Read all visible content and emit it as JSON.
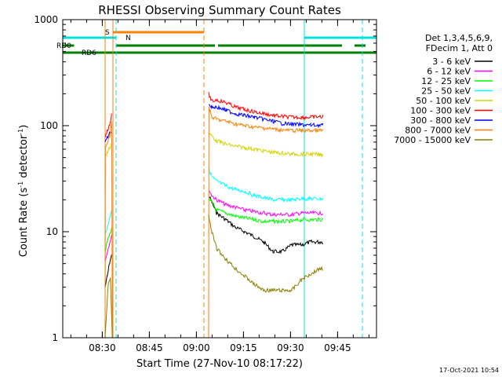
{
  "chart_data": {
    "type": "line",
    "title": "RHESSI Observing Summary Count Rates",
    "xlabel": "Start Time (27-Nov-10 08:17:22)",
    "ylabel_main": "Count Rate (s",
    "ylabel_sup": "-1",
    "ylabel_tail": " detector",
    "ylabel_end": ")",
    "footer": "17-Oct-2021 10:54",
    "yscale": "log",
    "ylim": [
      1,
      1000
    ],
    "xlim_minutes": [
      0,
      100
    ],
    "y_ticks": [
      {
        "value": 1,
        "label": "1"
      },
      {
        "value": 10,
        "label": "10"
      },
      {
        "value": 100,
        "label": "100"
      },
      {
        "value": 1000,
        "label": "1000"
      }
    ],
    "x_ticks": [
      {
        "minute": 12.6,
        "label": "08:30"
      },
      {
        "minute": 27.6,
        "label": "08:45"
      },
      {
        "minute": 42.6,
        "label": "09:00"
      },
      {
        "minute": 57.6,
        "label": "09:15"
      },
      {
        "minute": 72.6,
        "label": "09:30"
      },
      {
        "minute": 87.6,
        "label": "09:45"
      }
    ],
    "legend": {
      "header": [
        "Det 1,3,4,5,6,9,",
        "FDecim 1, Att 0"
      ],
      "placement": "right"
    },
    "series": [
      {
        "name": "3 - 6 keV",
        "color": "#000000",
        "segments": [
          [
            [
              13.5,
              3
            ],
            [
              14.2,
              3.8
            ],
            [
              15,
              5.2
            ],
            [
              15.6,
              6
            ]
          ],
          [
            [
              46.5,
              22
            ],
            [
              47.5,
              19
            ],
            [
              49,
              15
            ],
            [
              52,
              13
            ],
            [
              55,
              11
            ],
            [
              58,
              10
            ],
            [
              61,
              9
            ],
            [
              64,
              8
            ],
            [
              67,
              6.5
            ],
            [
              70,
              6.5
            ],
            [
              73,
              7.5
            ],
            [
              76,
              7.5
            ],
            [
              79,
              8
            ],
            [
              82,
              8
            ],
            [
              83,
              8
            ]
          ]
        ]
      },
      {
        "name": "6 - 12 keV",
        "color": "#ff00ff",
        "segments": [
          [
            [
              13.5,
              5.2
            ],
            [
              14.2,
              6.5
            ],
            [
              15,
              8
            ],
            [
              15.6,
              9
            ]
          ],
          [
            [
              46.5,
              25
            ],
            [
              47.5,
              22
            ],
            [
              49,
              20
            ],
            [
              52,
              18
            ],
            [
              55,
              17
            ],
            [
              58,
              16
            ],
            [
              61,
              15.5
            ],
            [
              64,
              15
            ],
            [
              67,
              14.5
            ],
            [
              70,
              14.5
            ],
            [
              73,
              14.5
            ],
            [
              76,
              15
            ],
            [
              79,
              15
            ],
            [
              82,
              15
            ],
            [
              83,
              15
            ]
          ]
        ]
      },
      {
        "name": "12 - 25 keV",
        "color": "#00ff00",
        "segments": [
          [
            [
              13.5,
              6.5
            ],
            [
              14.2,
              8
            ],
            [
              15,
              9.5
            ],
            [
              15.6,
              11
            ]
          ],
          [
            [
              46.5,
              21
            ],
            [
              47.5,
              19
            ],
            [
              49,
              16
            ],
            [
              52,
              15
            ],
            [
              55,
              14
            ],
            [
              58,
              13.5
            ],
            [
              61,
              13
            ],
            [
              64,
              12.5
            ],
            [
              67,
              12.5
            ],
            [
              70,
              12.5
            ],
            [
              73,
              12.5
            ],
            [
              76,
              13
            ],
            [
              79,
              13
            ],
            [
              82,
              13
            ],
            [
              83,
              13
            ]
          ]
        ]
      },
      {
        "name": "25 - 50 keV",
        "color": "#00ffff",
        "segments": [
          [
            [
              13.5,
              9.5
            ],
            [
              14.2,
              11
            ],
            [
              15,
              14
            ],
            [
              15.6,
              16
            ]
          ],
          [
            [
              46.5,
              40
            ],
            [
              47.5,
              33
            ],
            [
              49,
              30
            ],
            [
              52,
              27
            ],
            [
              55,
              25
            ],
            [
              58,
              24
            ],
            [
              61,
              22
            ],
            [
              64,
              21
            ],
            [
              67,
              20
            ],
            [
              70,
              20
            ],
            [
              73,
              20
            ],
            [
              76,
              20.5
            ],
            [
              79,
              20.5
            ],
            [
              82,
              20.5
            ],
            [
              83,
              20.5
            ]
          ]
        ]
      },
      {
        "name": "50 - 100 keV",
        "color": "#d4d400",
        "segments": [
          [
            [
              13.5,
              50
            ],
            [
              14.2,
              56
            ],
            [
              15,
              62
            ],
            [
              15.6,
              70
            ]
          ],
          [
            [
              46.5,
              85
            ],
            [
              47.5,
              80
            ],
            [
              49,
              72
            ],
            [
              52,
              67
            ],
            [
              55,
              64
            ],
            [
              58,
              62
            ],
            [
              61,
              60
            ],
            [
              64,
              58
            ],
            [
              67,
              56
            ],
            [
              70,
              55
            ],
            [
              73,
              54
            ],
            [
              76,
              54
            ],
            [
              79,
              54
            ],
            [
              82,
              53
            ],
            [
              83,
              53
            ]
          ]
        ]
      },
      {
        "name": "100 - 300 keV",
        "color": "#ff0000",
        "segments": [
          [
            [
              13.5,
              80
            ],
            [
              14.2,
              90
            ],
            [
              15,
              105
            ],
            [
              15.6,
              125
            ]
          ],
          [
            [
              46.5,
              200
            ],
            [
              47.5,
              170
            ],
            [
              49,
              175
            ],
            [
              52,
              165
            ],
            [
              55,
              150
            ],
            [
              58,
              142
            ],
            [
              61,
              135
            ],
            [
              64,
              130
            ],
            [
              67,
              125
            ],
            [
              70,
              122
            ],
            [
              73,
              120
            ],
            [
              76,
              120
            ],
            [
              79,
              120
            ],
            [
              82,
              122
            ],
            [
              83,
              122
            ]
          ]
        ]
      },
      {
        "name": "300 - 800 keV",
        "color": "#0000ff",
        "segments": [
          [
            [
              13.5,
              70
            ],
            [
              14.2,
              78
            ],
            [
              15,
              85
            ],
            [
              15.6,
              90
            ]
          ],
          [
            [
              46.5,
              160
            ],
            [
              47.5,
              150
            ],
            [
              49,
              150
            ],
            [
              52,
              140
            ],
            [
              55,
              130
            ],
            [
              58,
              125
            ],
            [
              61,
              120
            ],
            [
              64,
              115
            ],
            [
              67,
              110
            ],
            [
              70,
              105
            ],
            [
              73,
              103
            ],
            [
              76,
              102
            ],
            [
              79,
              101
            ],
            [
              82,
              101
            ],
            [
              83,
              101
            ]
          ]
        ]
      },
      {
        "name": "800 - 7000 keV",
        "color": "#ff8000",
        "segments": [
          [
            [
              13.5,
              1
            ],
            [
              13.6,
              60
            ],
            [
              14.2,
              70
            ],
            [
              15,
              80
            ],
            [
              15.6,
              110
            ],
            [
              15.8,
              1
            ]
          ],
          [
            [
              46.5,
              1
            ],
            [
              46.6,
              150
            ],
            [
              47.5,
              120
            ],
            [
              49,
              115
            ],
            [
              52,
              110
            ],
            [
              55,
              104
            ],
            [
              58,
              100
            ],
            [
              61,
              97
            ],
            [
              64,
              95
            ],
            [
              67,
              93
            ],
            [
              70,
              91
            ],
            [
              73,
              90
            ],
            [
              76,
              90
            ],
            [
              79,
              90
            ],
            [
              82,
              90
            ],
            [
              83,
              90
            ]
          ]
        ]
      },
      {
        "name": "7000 - 15000 keV",
        "color": "#8b8000",
        "segments": [
          [
            [
              13.5,
              1
            ],
            [
              14.5,
              3.2
            ],
            [
              15.2,
              3.6
            ],
            [
              15.8,
              1
            ]
          ],
          [
            [
              46.5,
              14
            ],
            [
              47.5,
              10
            ],
            [
              49,
              7
            ],
            [
              52,
              5.5
            ],
            [
              55,
              4.5
            ],
            [
              58,
              3.8
            ],
            [
              61,
              3.2
            ],
            [
              64,
              2.8
            ],
            [
              67,
              2.8
            ],
            [
              70,
              2.8
            ],
            [
              73,
              2.8
            ],
            [
              76,
              3.5
            ],
            [
              79,
              4
            ],
            [
              82,
              4.5
            ],
            [
              83,
              4.5
            ]
          ]
        ]
      }
    ],
    "flag_lines": [
      {
        "label": "RD0",
        "color": "#008000",
        "y_index": 0,
        "segments": [
          [
            0,
            3.6
          ],
          [
            17,
            48.5
          ],
          [
            49.5,
            89
          ],
          [
            93,
            96.5
          ]
        ]
      },
      {
        "label": "RD6",
        "color": "#008000",
        "y_index": 1,
        "segments": [
          [
            0,
            100
          ]
        ]
      },
      {
        "label": "N",
        "color": "#00e0e0",
        "y_index": -1,
        "segments": [
          [
            0,
            17
          ],
          [
            77,
            100
          ]
        ]
      },
      {
        "label": "S",
        "color": "#ff8000",
        "y_index": -2,
        "segments": [
          [
            16,
            45
          ]
        ]
      }
    ],
    "vlines": [
      {
        "minute": 0,
        "color": "#00e0e0",
        "style": "solid"
      },
      {
        "minute": 13.5,
        "color": "#ff8000",
        "style": "solid"
      },
      {
        "minute": 16,
        "color": "#ff8000",
        "style": "solid"
      },
      {
        "minute": 17,
        "color": "#00e0e0",
        "style": "dashed"
      },
      {
        "minute": 45,
        "color": "#ff8000",
        "style": "dashed"
      },
      {
        "minute": 77,
        "color": "#00e0e0",
        "style": "solid"
      },
      {
        "minute": 95.5,
        "color": "#00e0e0",
        "style": "dashed"
      }
    ]
  }
}
